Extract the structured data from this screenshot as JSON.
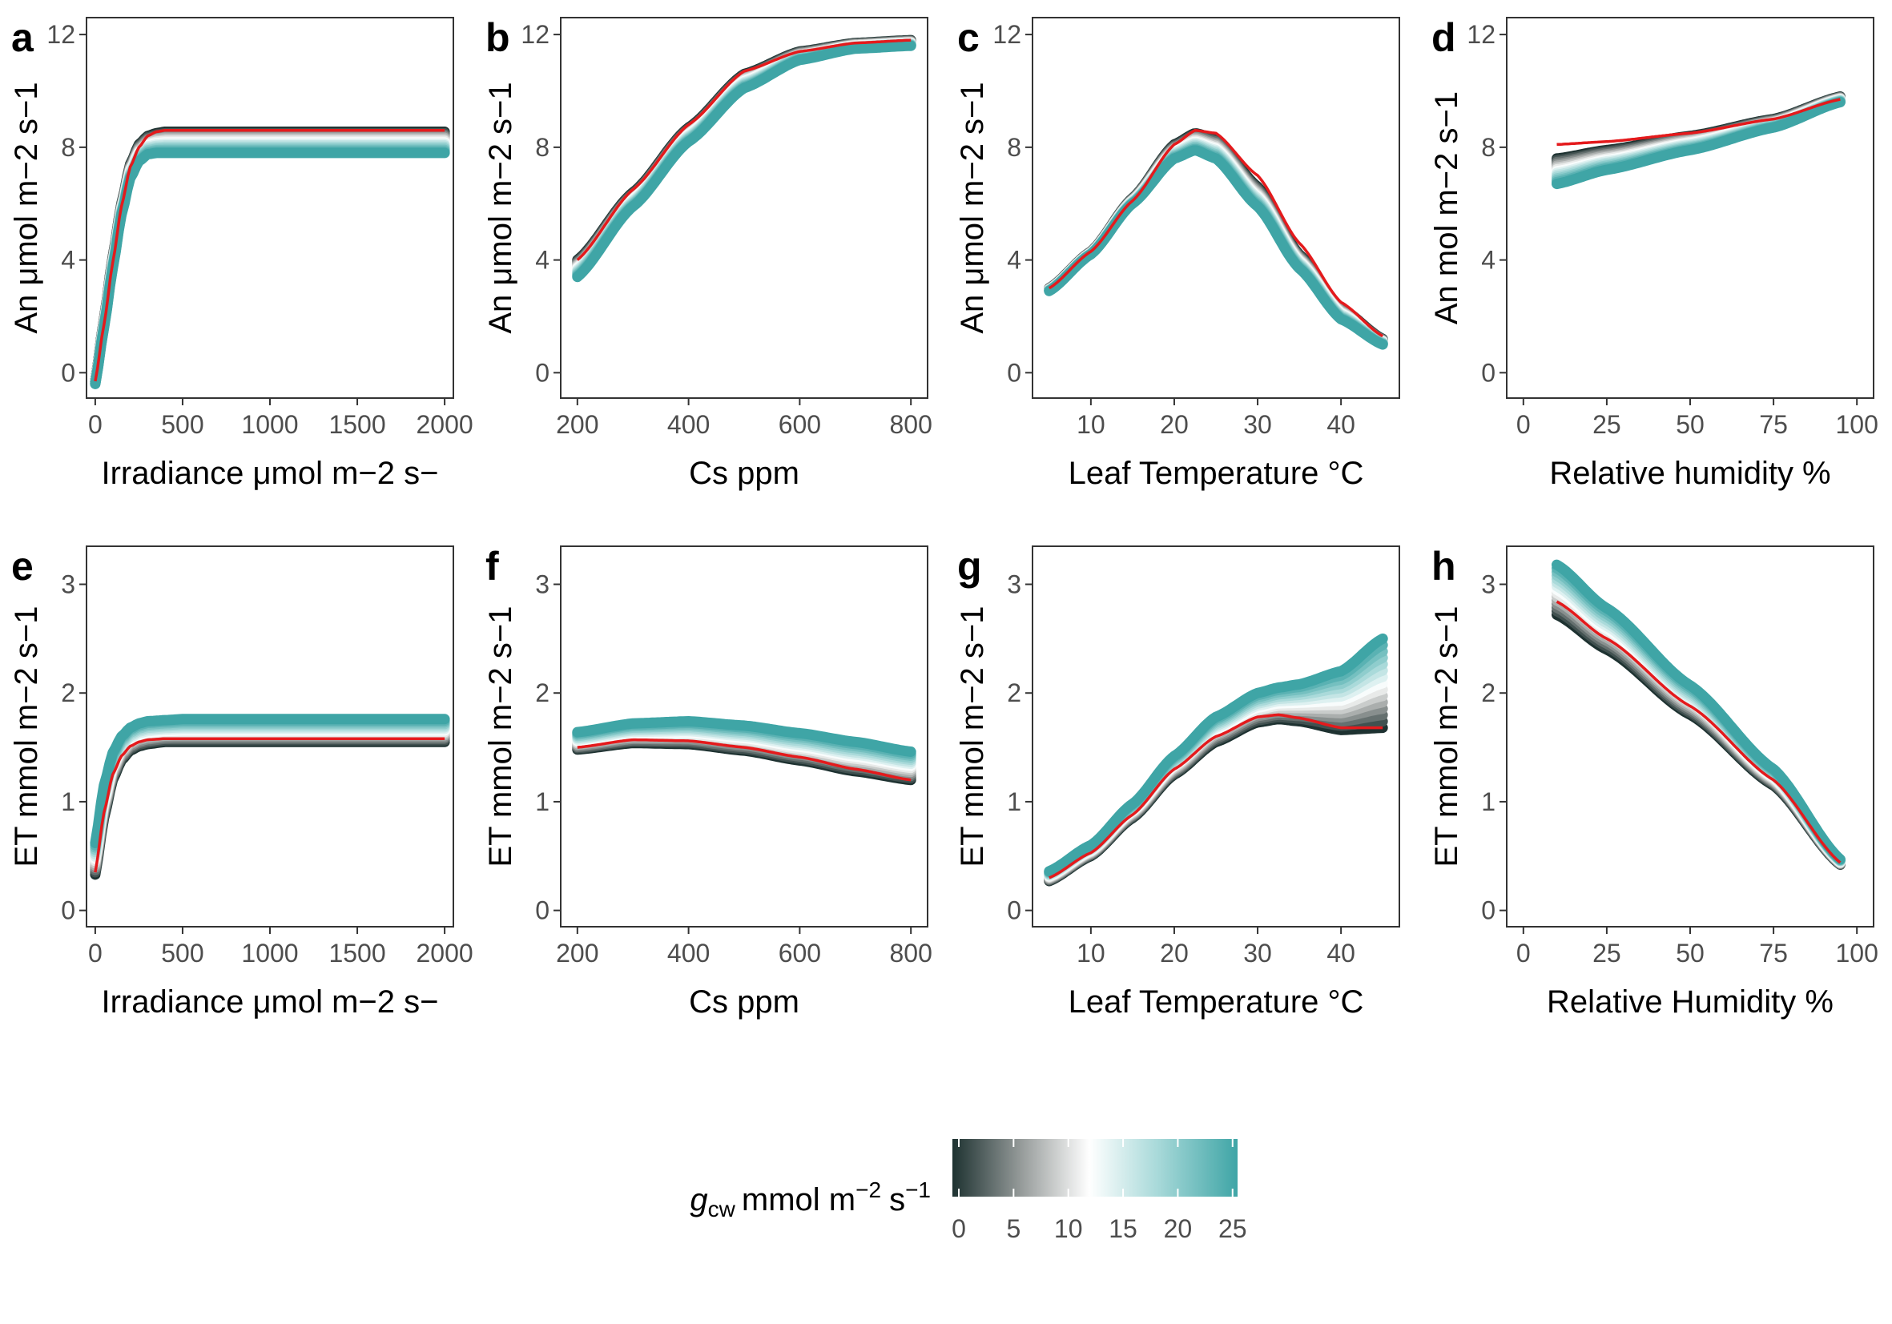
{
  "figure": {
    "legend": {
      "title_symbol": "g",
      "title_subscript": "cw",
      "title_unit": "mmol m",
      "title_exp1": "−2",
      "title_s": "s",
      "title_exp2": "−1",
      "ticks": [
        "0",
        "5",
        "10",
        "15",
        "20",
        "25"
      ],
      "range": [
        0,
        25
      ],
      "colors": [
        "#1e3231",
        "#9a9f9e",
        "#ffffff",
        "#a8d9d9",
        "#3fa5a6"
      ]
    },
    "colors": {
      "gcw_low": "#1e3231",
      "gcw_mid": "#ffffff",
      "gcw_high": "#3fa5a6",
      "reference_line": "#e41a1c"
    }
  },
  "chart_data": [
    {
      "panel": "a",
      "type": "line",
      "xlabel": "Irradiance μmol m−2 s−",
      "ylabel": "An μmol m−2 s−1",
      "xlim": [
        -50,
        2050
      ],
      "ylim": [
        -0.9,
        12.6
      ],
      "xticks": [
        0,
        500,
        1000,
        1500,
        2000
      ],
      "yticks": [
        0,
        4,
        8,
        12
      ],
      "x": [
        0,
        50,
        100,
        150,
        200,
        250,
        300,
        350,
        400,
        500,
        700,
        1000,
        1500,
        2000
      ],
      "series": [
        {
          "gcw": 0,
          "values": [
            -0.3,
            1.9,
            4.1,
            6.0,
            7.4,
            8.1,
            8.4,
            8.5,
            8.55,
            8.55,
            8.55,
            8.55,
            8.55,
            8.55
          ]
        },
        {
          "gcw": 25,
          "values": [
            -0.4,
            1.6,
            3.7,
            5.6,
            6.9,
            7.5,
            7.75,
            7.8,
            7.8,
            7.8,
            7.8,
            7.8,
            7.8,
            7.8
          ]
        },
        {
          "reference": true,
          "values": [
            -0.3,
            1.7,
            3.9,
            5.9,
            7.3,
            8.0,
            8.4,
            8.55,
            8.6,
            8.6,
            8.6,
            8.6,
            8.6,
            8.6
          ]
        }
      ]
    },
    {
      "panel": "b",
      "type": "line",
      "xlabel": "Cs ppm",
      "ylabel": "An μmol m−2 s−1",
      "xlim": [
        170,
        830
      ],
      "ylim": [
        -0.9,
        12.6
      ],
      "xticks": [
        200,
        400,
        600,
        800
      ],
      "yticks": [
        0,
        4,
        8,
        12
      ],
      "x": [
        200,
        300,
        400,
        500,
        600,
        700,
        800
      ],
      "series": [
        {
          "gcw": 0,
          "values": [
            4.0,
            6.4,
            8.7,
            10.6,
            11.4,
            11.7,
            11.8
          ]
        },
        {
          "gcw": 25,
          "values": [
            3.4,
            5.9,
            8.2,
            10.1,
            11.1,
            11.5,
            11.6
          ]
        },
        {
          "reference": true,
          "values": [
            4.0,
            6.5,
            8.8,
            10.7,
            11.4,
            11.7,
            11.8
          ]
        }
      ]
    },
    {
      "panel": "c",
      "type": "line",
      "xlabel": "Leaf Temperature °C",
      "ylabel": "An μmol m−2 s−1",
      "xlim": [
        3,
        47
      ],
      "ylim": [
        -0.9,
        12.6
      ],
      "xticks": [
        10,
        20,
        30,
        40
      ],
      "yticks": [
        0,
        4,
        8,
        12
      ],
      "x": [
        5,
        10,
        15,
        20,
        22.5,
        25,
        30,
        35,
        40,
        45
      ],
      "series": [
        {
          "gcw": 0,
          "values": [
            3.0,
            4.3,
            6.2,
            8.1,
            8.5,
            8.3,
            6.6,
            4.2,
            2.3,
            1.2
          ]
        },
        {
          "gcw": 25,
          "values": [
            2.9,
            4.2,
            6.0,
            7.6,
            7.9,
            7.6,
            5.9,
            3.7,
            1.9,
            1.0
          ]
        },
        {
          "reference": true,
          "values": [
            3.0,
            4.3,
            6.1,
            8.1,
            8.6,
            8.5,
            7.0,
            4.6,
            2.5,
            1.3
          ]
        }
      ]
    },
    {
      "panel": "d",
      "type": "line",
      "xlabel": "Relative humidity %",
      "ylabel": "An mol m−2 s−1",
      "xlim": [
        -5,
        105
      ],
      "ylim": [
        -0.9,
        12.6
      ],
      "xticks": [
        0,
        25,
        50,
        75,
        100
      ],
      "yticks": [
        0,
        4,
        8,
        12
      ],
      "x": [
        10,
        25,
        50,
        75,
        95
      ],
      "series": [
        {
          "gcw": 0,
          "values": [
            7.6,
            7.9,
            8.4,
            9.0,
            9.8
          ]
        },
        {
          "gcw": 25,
          "values": [
            6.7,
            7.2,
            7.9,
            8.7,
            9.6
          ]
        },
        {
          "reference": true,
          "values": [
            8.1,
            8.2,
            8.5,
            9.0,
            9.7
          ]
        }
      ]
    },
    {
      "panel": "e",
      "type": "line",
      "xlabel": "Irradiance μmol m−2 s−",
      "ylabel": "ET mmol m−2 s−1",
      "xlim": [
        -50,
        2050
      ],
      "ylim": [
        -0.15,
        3.35
      ],
      "xticks": [
        0,
        500,
        1000,
        1500,
        2000
      ],
      "yticks": [
        0,
        1,
        2,
        3
      ],
      "x": [
        0,
        50,
        100,
        150,
        200,
        250,
        300,
        400,
        500,
        1000,
        1500,
        2000
      ],
      "series": [
        {
          "gcw": 0,
          "values": [
            0.33,
            0.85,
            1.2,
            1.38,
            1.47,
            1.51,
            1.53,
            1.55,
            1.55,
            1.55,
            1.55,
            1.55
          ]
        },
        {
          "gcw": 25,
          "values": [
            0.62,
            1.15,
            1.45,
            1.6,
            1.68,
            1.72,
            1.74,
            1.75,
            1.76,
            1.76,
            1.76,
            1.76
          ]
        },
        {
          "reference": true,
          "values": [
            0.35,
            0.9,
            1.25,
            1.42,
            1.51,
            1.55,
            1.57,
            1.58,
            1.58,
            1.58,
            1.58,
            1.58
          ]
        }
      ]
    },
    {
      "panel": "f",
      "type": "line",
      "xlabel": "Cs ppm",
      "ylabel": "ET mmol m−2 s−1",
      "xlim": [
        170,
        830
      ],
      "ylim": [
        -0.15,
        3.35
      ],
      "xticks": [
        200,
        400,
        600,
        800
      ],
      "yticks": [
        0,
        1,
        2,
        3
      ],
      "x": [
        200,
        300,
        400,
        500,
        600,
        700,
        800
      ],
      "series": [
        {
          "gcw": 0,
          "values": [
            1.48,
            1.54,
            1.53,
            1.47,
            1.38,
            1.28,
            1.2
          ]
        },
        {
          "gcw": 25,
          "values": [
            1.64,
            1.72,
            1.74,
            1.7,
            1.63,
            1.55,
            1.46
          ]
        },
        {
          "reference": true,
          "values": [
            1.5,
            1.57,
            1.56,
            1.5,
            1.41,
            1.3,
            1.2
          ]
        }
      ]
    },
    {
      "panel": "g",
      "type": "line",
      "xlabel": "Leaf Temperature °C",
      "ylabel": "ET mmol m−2 s−1",
      "xlim": [
        3,
        47
      ],
      "ylim": [
        -0.15,
        3.35
      ],
      "xticks": [
        10,
        20,
        30,
        40
      ],
      "yticks": [
        0,
        1,
        2,
        3
      ],
      "x": [
        5,
        10,
        15,
        20,
        25,
        30,
        32.5,
        35,
        40,
        45
      ],
      "series": [
        {
          "gcw": 0,
          "values": [
            0.27,
            0.5,
            0.85,
            1.25,
            1.55,
            1.73,
            1.76,
            1.74,
            1.66,
            1.68
          ]
        },
        {
          "gcw": 25,
          "values": [
            0.36,
            0.6,
            0.98,
            1.42,
            1.78,
            2.0,
            2.05,
            2.08,
            2.2,
            2.5
          ]
        },
        {
          "reference": true,
          "values": [
            0.3,
            0.53,
            0.88,
            1.3,
            1.6,
            1.78,
            1.8,
            1.77,
            1.68,
            1.68
          ]
        }
      ]
    },
    {
      "panel": "h",
      "type": "line",
      "xlabel": "Relative Humidity %",
      "ylabel": "ET mmol m−2 s−1",
      "xlim": [
        -5,
        105
      ],
      "ylim": [
        -0.15,
        3.35
      ],
      "xticks": [
        0,
        25,
        50,
        75,
        100
      ],
      "yticks": [
        0,
        1,
        2,
        3
      ],
      "x": [
        10,
        25,
        50,
        75,
        95
      ],
      "series": [
        {
          "gcw": 0,
          "values": [
            2.72,
            2.4,
            1.8,
            1.15,
            0.42
          ]
        },
        {
          "gcw": 25,
          "values": [
            3.18,
            2.78,
            2.07,
            1.3,
            0.47
          ]
        },
        {
          "reference": true,
          "values": [
            2.84,
            2.5,
            1.88,
            1.2,
            0.44
          ]
        }
      ]
    }
  ]
}
